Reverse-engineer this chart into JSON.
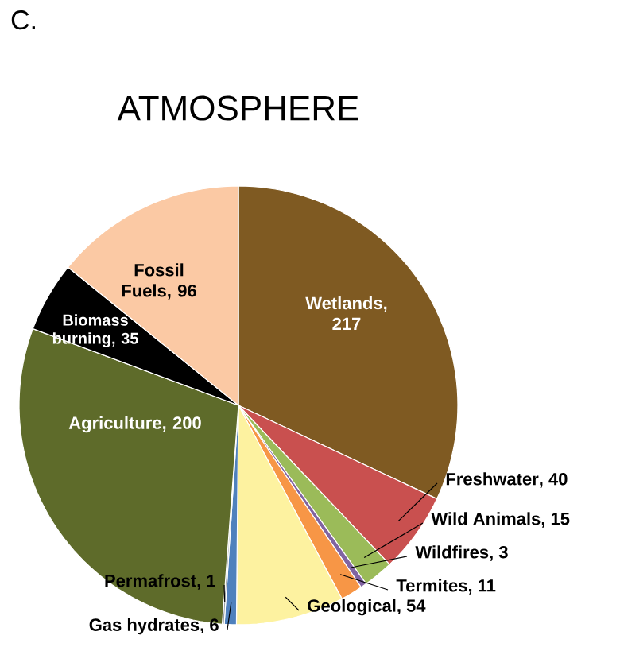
{
  "chart_data": {
    "type": "pie",
    "title": "ATMOSPHERE",
    "annotations": [
      "C."
    ],
    "categories": [
      "Wetlands",
      "Freshwater",
      "Wild Animals",
      "Wildfires",
      "Termites",
      "Geological",
      "Gas hydrates",
      "Permafrost",
      "Agriculture",
      "Biomass burning",
      "Fossil Fuels"
    ],
    "values": [
      217,
      40,
      15,
      3,
      11,
      54,
      6,
      1,
      200,
      35,
      96
    ],
    "colors": [
      "#7f5a22",
      "#c9504f",
      "#9bbb59",
      "#8064a2",
      "#f79646",
      "#fdf2a0",
      "#4f81bd",
      "#9aa0a6",
      "#5e6b2a",
      "#000000",
      "#fbc9a4"
    ],
    "value_labels": [
      ", 217",
      ", 40",
      ", 15",
      ", 3",
      ", 11",
      ", 54",
      ", 6",
      ", 1",
      ", 200",
      ", 35",
      ", 96"
    ]
  }
}
